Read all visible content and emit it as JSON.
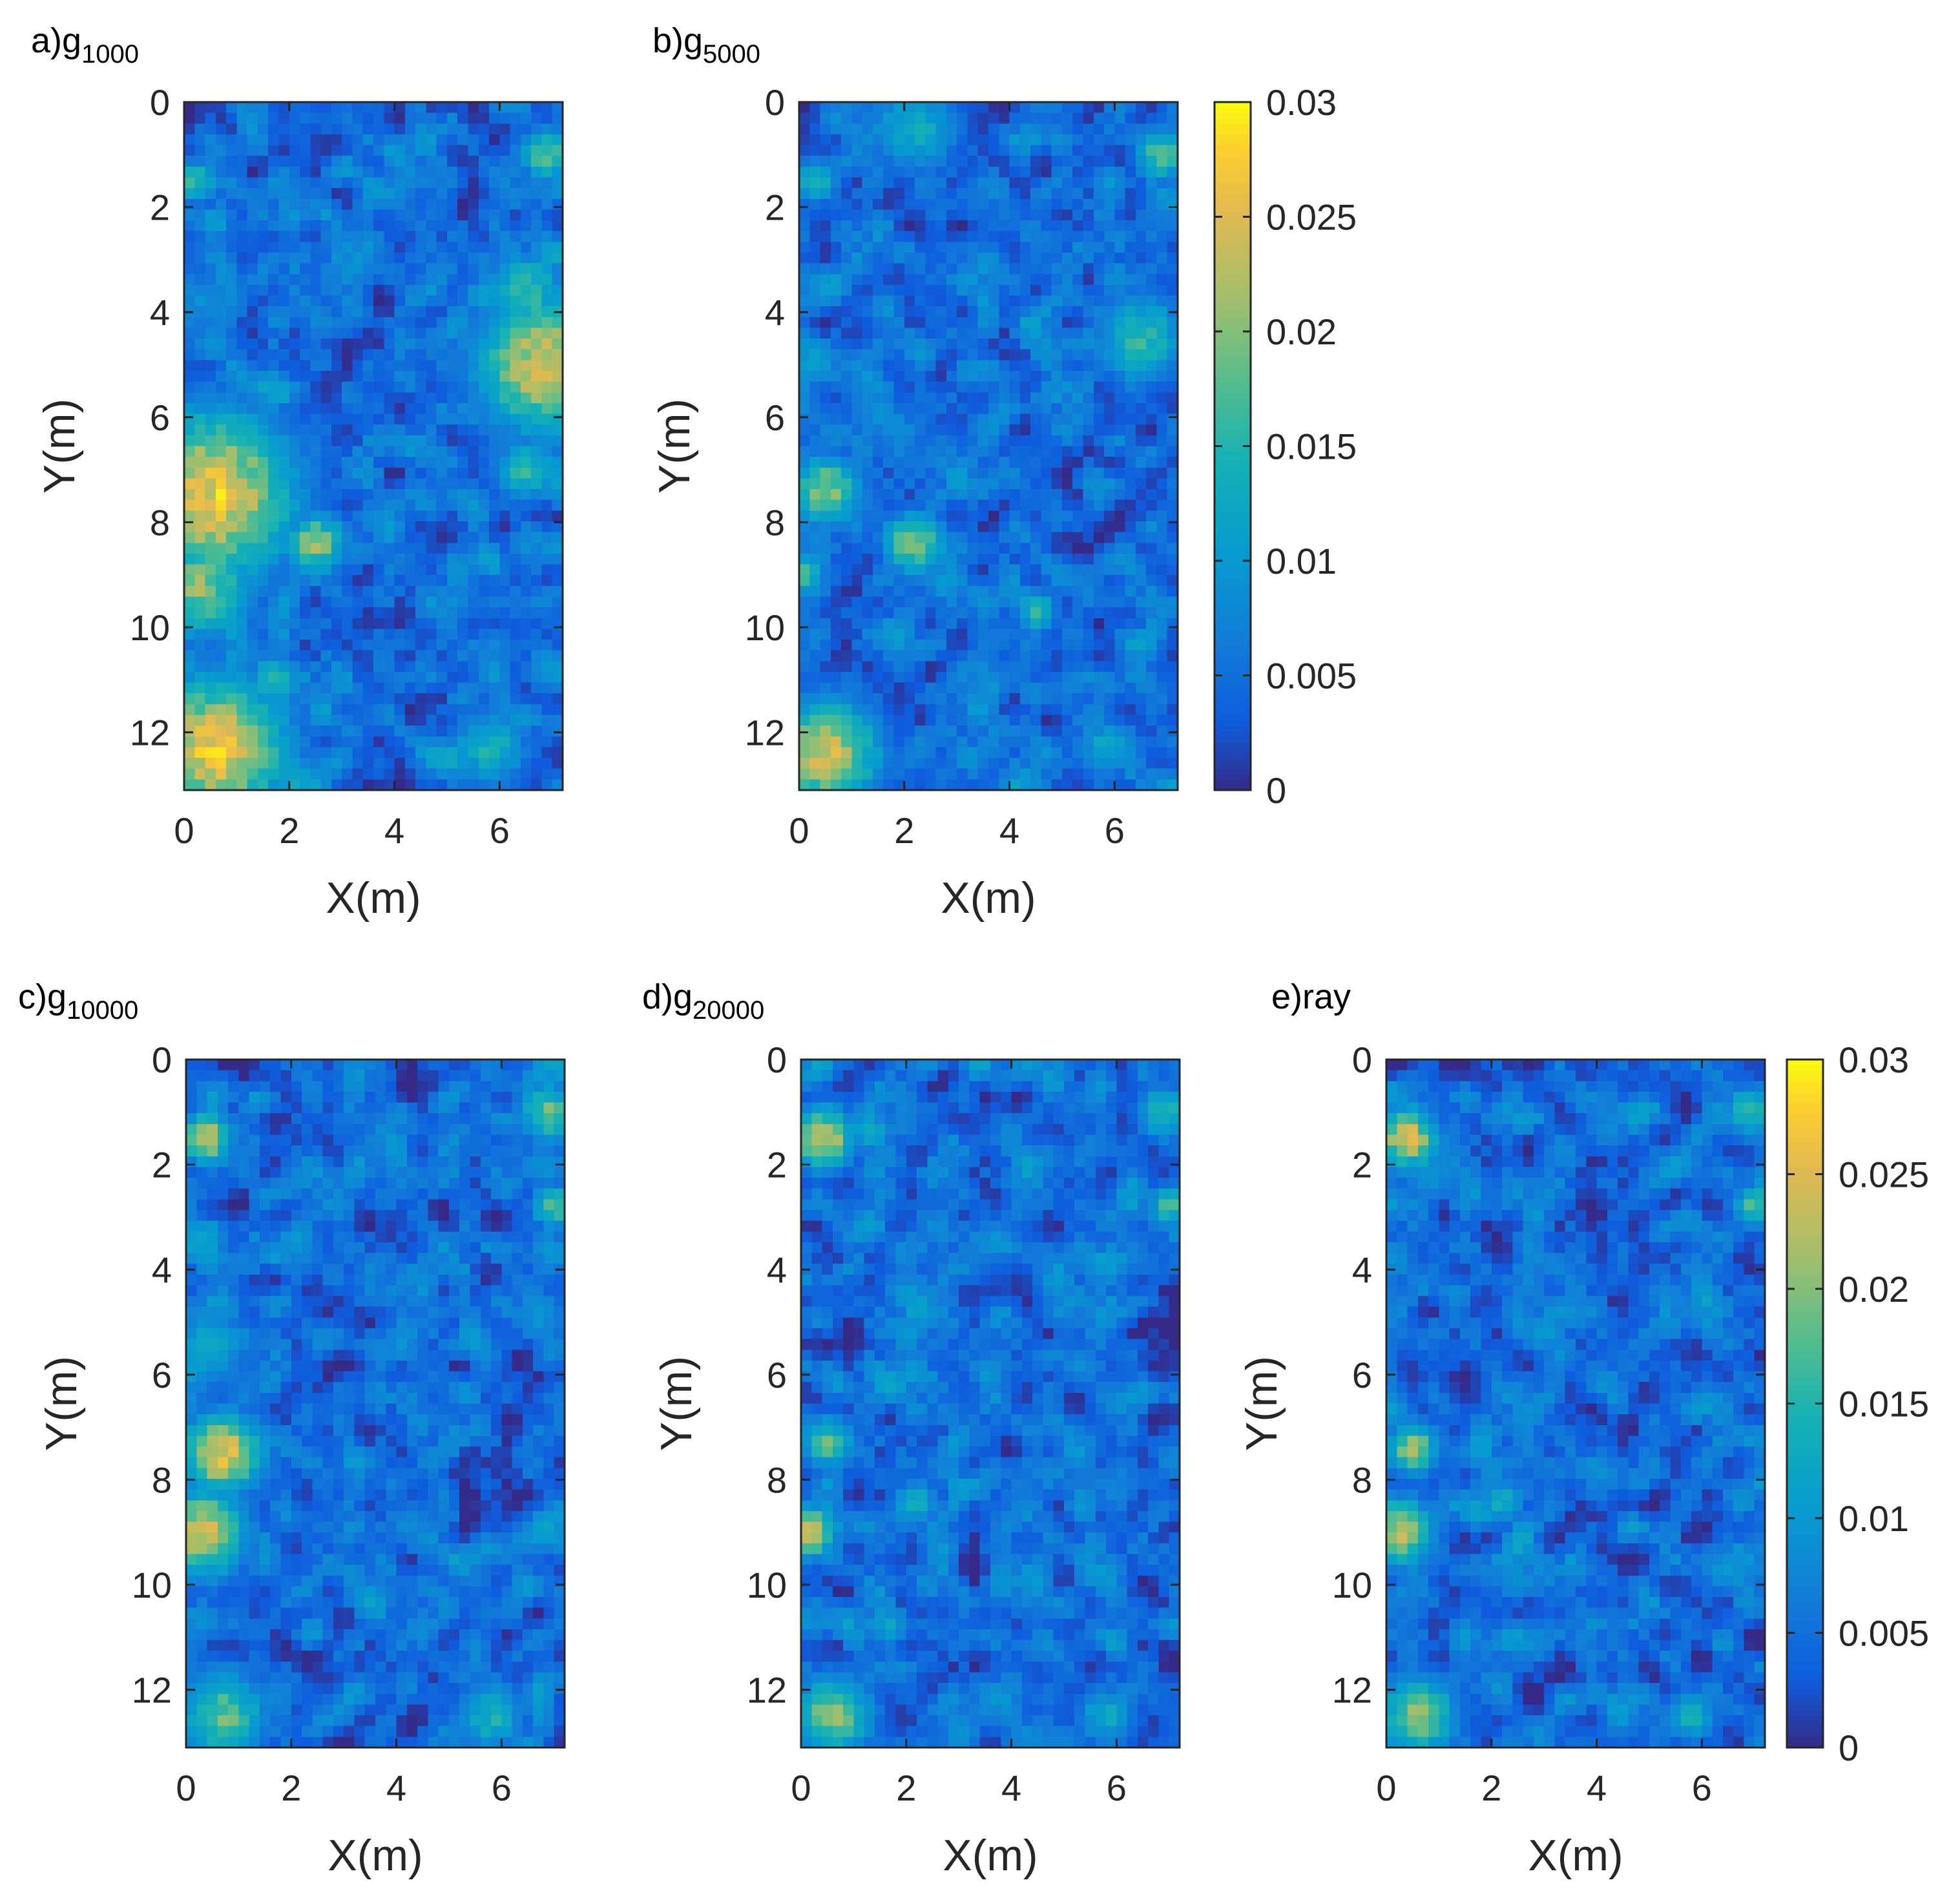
{
  "chart_data": [
    {
      "type": "heatmap",
      "panel": "a",
      "title_prefix": "a)g",
      "title_subscript": "1000",
      "xlabel": "X(m)",
      "ylabel": "Y(m)",
      "xlim": [
        0,
        7.2
      ],
      "ylim": [
        0,
        13.1
      ],
      "xticks": [
        0,
        2,
        4,
        6
      ],
      "yticks": [
        0,
        2,
        4,
        6,
        8,
        10,
        12
      ],
      "clim": [
        0,
        0.03
      ],
      "colorbar": false,
      "seed": 11,
      "hotspots": [
        {
          "x": 0.5,
          "y": 7.5,
          "r": 1.9,
          "v": 0.026
        },
        {
          "x": 0.6,
          "y": 12.3,
          "r": 1.6,
          "v": 0.026
        },
        {
          "x": 0.3,
          "y": 9.2,
          "r": 1.2,
          "v": 0.02
        },
        {
          "x": 6.9,
          "y": 5.0,
          "r": 1.6,
          "v": 0.024
        },
        {
          "x": 6.5,
          "y": 3.6,
          "r": 0.9,
          "v": 0.016
        },
        {
          "x": 6.9,
          "y": 1.0,
          "r": 0.6,
          "v": 0.018
        },
        {
          "x": 2.5,
          "y": 8.4,
          "r": 0.7,
          "v": 0.02
        },
        {
          "x": 1.7,
          "y": 11.0,
          "r": 0.6,
          "v": 0.016
        },
        {
          "x": 0.2,
          "y": 1.5,
          "r": 0.5,
          "v": 0.016
        },
        {
          "x": 5.8,
          "y": 12.3,
          "r": 0.9,
          "v": 0.014
        },
        {
          "x": 6.5,
          "y": 7.0,
          "r": 0.7,
          "v": 0.016
        }
      ]
    },
    {
      "type": "heatmap",
      "panel": "b",
      "title_prefix": "b)g",
      "title_subscript": "5000",
      "xlabel": "X(m)",
      "ylabel": "Y(m)",
      "xlim": [
        0,
        7.2
      ],
      "ylim": [
        0,
        13.1
      ],
      "xticks": [
        0,
        2,
        4,
        6
      ],
      "yticks": [
        0,
        2,
        4,
        6,
        8,
        10,
        12
      ],
      "clim": [
        0,
        0.03
      ],
      "colorbar": true,
      "colorbar_ticks": [
        "0",
        "0.005",
        "0.01",
        "0.015",
        "0.02",
        "0.025",
        "0.03"
      ],
      "seed": 23,
      "hotspots": [
        {
          "x": 0.5,
          "y": 12.4,
          "r": 1.2,
          "v": 0.024
        },
        {
          "x": 0.5,
          "y": 7.4,
          "r": 0.8,
          "v": 0.02
        },
        {
          "x": 2.2,
          "y": 8.4,
          "r": 0.7,
          "v": 0.02
        },
        {
          "x": 6.5,
          "y": 4.5,
          "r": 1.0,
          "v": 0.016
        },
        {
          "x": 6.9,
          "y": 1.0,
          "r": 0.6,
          "v": 0.018
        },
        {
          "x": 0.3,
          "y": 1.5,
          "r": 0.5,
          "v": 0.016
        },
        {
          "x": 2.2,
          "y": 0.5,
          "r": 1.0,
          "v": 0.013
        },
        {
          "x": 0.1,
          "y": 9.0,
          "r": 0.5,
          "v": 0.016
        },
        {
          "x": 4.5,
          "y": 9.7,
          "r": 0.5,
          "v": 0.015
        },
        {
          "x": 5.8,
          "y": 12.3,
          "r": 0.7,
          "v": 0.012
        }
      ]
    },
    {
      "type": "heatmap",
      "panel": "c",
      "title_prefix": "c)g",
      "title_subscript": "10000",
      "xlabel": "X(m)",
      "ylabel": "Y(m)",
      "xlim": [
        0,
        7.2
      ],
      "ylim": [
        0,
        13.1
      ],
      "xticks": [
        0,
        2,
        4,
        6
      ],
      "yticks": [
        0,
        2,
        4,
        6,
        8,
        10,
        12
      ],
      "clim": [
        0,
        0.03
      ],
      "colorbar": false,
      "seed": 37,
      "hotspots": [
        {
          "x": 0.7,
          "y": 7.5,
          "r": 0.9,
          "v": 0.026
        },
        {
          "x": 0.3,
          "y": 9.0,
          "r": 1.0,
          "v": 0.024
        },
        {
          "x": 0.4,
          "y": 1.5,
          "r": 0.6,
          "v": 0.022
        },
        {
          "x": 0.7,
          "y": 12.5,
          "r": 1.0,
          "v": 0.018
        },
        {
          "x": 6.9,
          "y": 1.0,
          "r": 0.7,
          "v": 0.018
        },
        {
          "x": 7.0,
          "y": 2.8,
          "r": 0.5,
          "v": 0.018
        },
        {
          "x": 5.8,
          "y": 12.5,
          "r": 0.8,
          "v": 0.014
        },
        {
          "x": 0.4,
          "y": 5.5,
          "r": 1.0,
          "v": 0.012
        }
      ]
    },
    {
      "type": "heatmap",
      "panel": "d",
      "title_prefix": "d)g",
      "title_subscript": "20000",
      "xlabel": "X(m)",
      "ylabel": "Y(m)",
      "xlim": [
        0,
        7.2
      ],
      "ylim": [
        0,
        13.1
      ],
      "xticks": [
        0,
        2,
        4,
        6
      ],
      "yticks": [
        0,
        2,
        4,
        6,
        8,
        10,
        12
      ],
      "clim": [
        0,
        0.03
      ],
      "colorbar": false,
      "seed": 41,
      "hotspots": [
        {
          "x": 0.4,
          "y": 1.5,
          "r": 0.7,
          "v": 0.024
        },
        {
          "x": 0.5,
          "y": 7.3,
          "r": 0.6,
          "v": 0.018
        },
        {
          "x": 0.2,
          "y": 9.0,
          "r": 0.6,
          "v": 0.022
        },
        {
          "x": 0.6,
          "y": 12.5,
          "r": 0.9,
          "v": 0.02
        },
        {
          "x": 6.9,
          "y": 1.0,
          "r": 0.6,
          "v": 0.016
        },
        {
          "x": 7.0,
          "y": 2.8,
          "r": 0.5,
          "v": 0.016
        },
        {
          "x": 2.2,
          "y": 8.4,
          "r": 0.5,
          "v": 0.014
        },
        {
          "x": 5.8,
          "y": 12.5,
          "r": 0.7,
          "v": 0.012
        }
      ]
    },
    {
      "type": "heatmap",
      "panel": "e",
      "title_prefix": "e)ray",
      "title_subscript": "",
      "xlabel": "X(m)",
      "ylabel": "Y(m)",
      "xlim": [
        0,
        7.2
      ],
      "ylim": [
        0,
        13.1
      ],
      "xticks": [
        0,
        2,
        4,
        6
      ],
      "yticks": [
        0,
        2,
        4,
        6,
        8,
        10,
        12
      ],
      "clim": [
        0,
        0.03
      ],
      "colorbar": true,
      "colorbar_ticks": [
        "0",
        "0.005",
        "0.01",
        "0.015",
        "0.02",
        "0.025",
        "0.03"
      ],
      "seed": 53,
      "hotspots": [
        {
          "x": 0.4,
          "y": 1.5,
          "r": 0.7,
          "v": 0.024
        },
        {
          "x": 0.5,
          "y": 7.4,
          "r": 0.6,
          "v": 0.02
        },
        {
          "x": 0.2,
          "y": 9.0,
          "r": 0.8,
          "v": 0.022
        },
        {
          "x": 0.6,
          "y": 12.5,
          "r": 0.9,
          "v": 0.02
        },
        {
          "x": 6.9,
          "y": 1.0,
          "r": 0.6,
          "v": 0.016
        },
        {
          "x": 7.0,
          "y": 2.8,
          "r": 0.5,
          "v": 0.018
        },
        {
          "x": 2.2,
          "y": 8.4,
          "r": 0.5,
          "v": 0.014
        },
        {
          "x": 5.8,
          "y": 12.5,
          "r": 0.6,
          "v": 0.014
        }
      ]
    }
  ]
}
